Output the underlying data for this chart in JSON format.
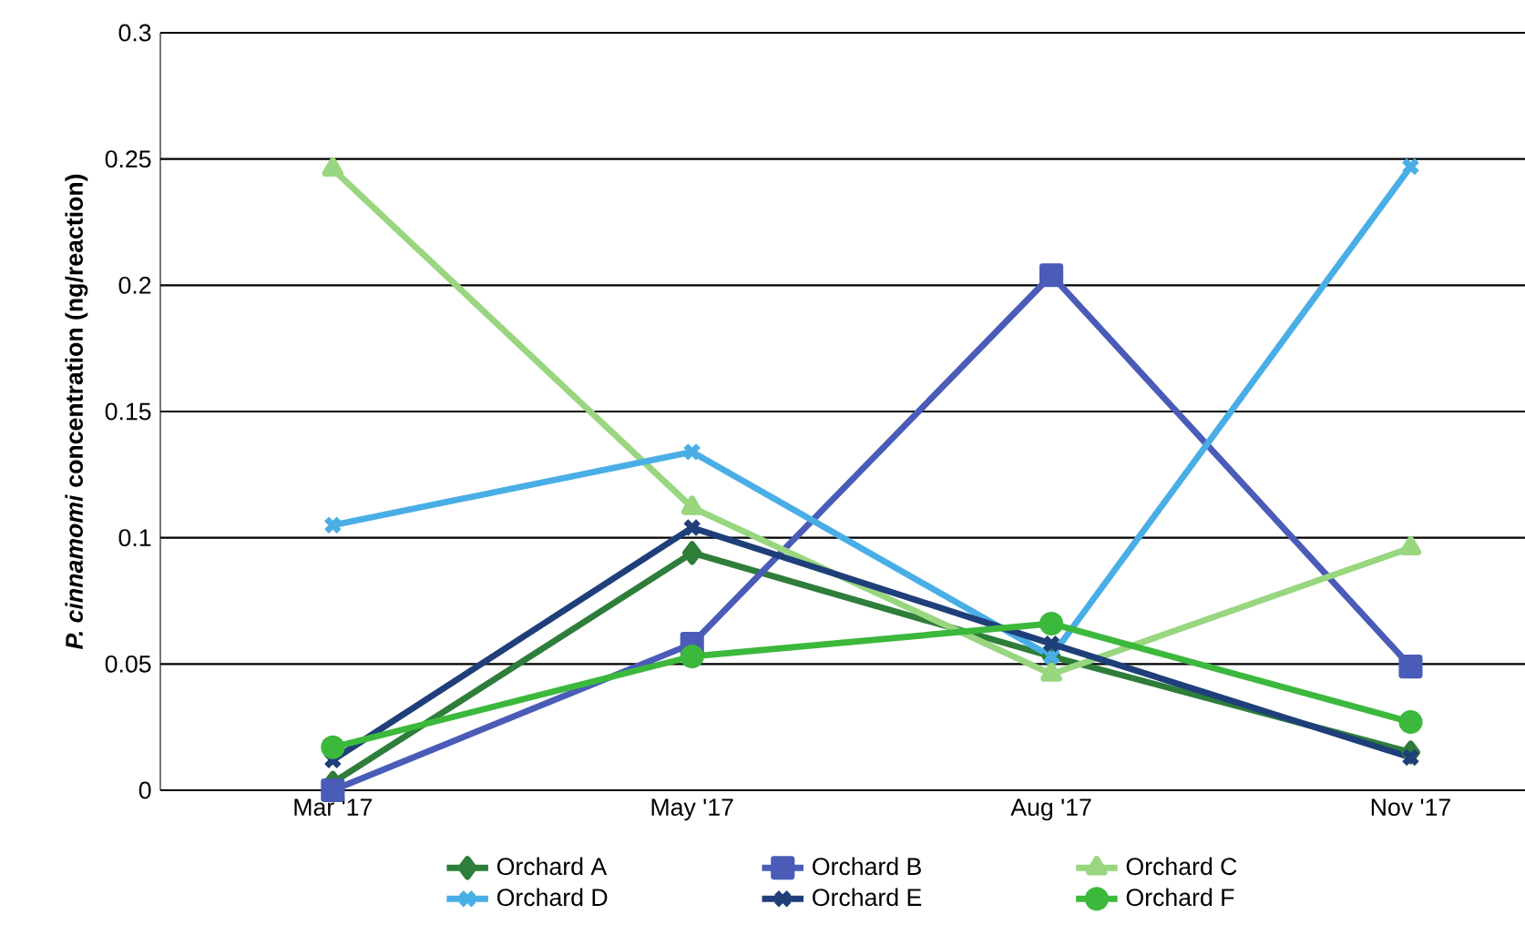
{
  "chart_data": {
    "type": "line",
    "ylabel": "*P. cinnamomi* concentration (ng/reaction)",
    "categories": [
      "Mar '17",
      "May '17",
      "Aug '17",
      "Nov '17"
    ],
    "ylim": [
      0,
      0.3
    ],
    "yticks": [
      0,
      0.05,
      0.1,
      0.15,
      0.2,
      0.25,
      0.3
    ],
    "grid": "y",
    "legend": "bottom",
    "line_style": "solid",
    "series": [
      {
        "name": "Orchard A",
        "color": "#2e7d3a",
        "marker": "diamond",
        "values": [
          0.003,
          0.094,
          0.053,
          0.015
        ]
      },
      {
        "name": "Orchard B",
        "color": "#4a5cb8",
        "marker": "square",
        "values": [
          0,
          0.058,
          0.204,
          0.049
        ]
      },
      {
        "name": "Orchard C",
        "color": "#98d67f",
        "marker": "triangle",
        "values": [
          0.246,
          0.112,
          0.046,
          0.096
        ]
      },
      {
        "name": "Orchard D",
        "color": "#4aaee6",
        "marker": "cross",
        "values": [
          0.105,
          0.134,
          0.053,
          0.247
        ]
      },
      {
        "name": "Orchard E",
        "color": "#1f3f7a",
        "marker": "cross",
        "values": [
          0.012,
          0.104,
          0.058,
          0.013
        ]
      },
      {
        "name": "Orchard F",
        "color": "#3cb83c",
        "marker": "circle",
        "values": [
          0.017,
          0.053,
          0.066,
          0.027
        ]
      }
    ]
  }
}
